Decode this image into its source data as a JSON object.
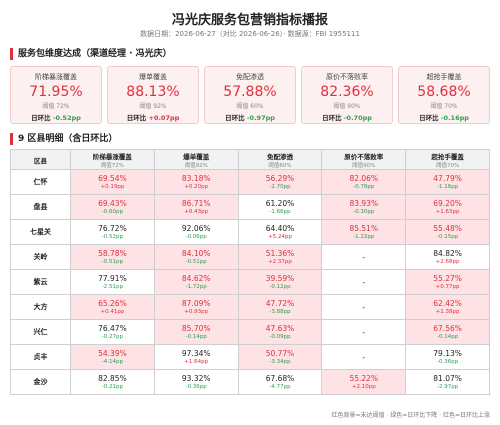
{
  "header": {
    "title": "冯光庆服务包营销指标播报",
    "subtitle": "数据日期：2026-06-27（对比 2026-06-26）· 数据源：FBI 1955111"
  },
  "summary": {
    "title": "服务包维度达成（渠道经理 · 冯光庆）",
    "delta_label": "日环比",
    "cards": [
      {
        "label": "阶梯暴涨覆盖",
        "value": "71.95%",
        "threshold": "阈值 72%",
        "delta": "-0.52pp",
        "alert": true
      },
      {
        "label": "爆单覆盖",
        "value": "88.13%",
        "threshold": "阈值 92%",
        "delta": "+0.07pp",
        "alert": true
      },
      {
        "label": "免配渗透",
        "value": "57.88%",
        "threshold": "阈值 60%",
        "delta": "-0.97pp",
        "alert": true
      },
      {
        "label": "原价不落败率",
        "value": "82.36%",
        "threshold": "阈值 90%",
        "delta": "-0.70pp",
        "alert": true
      },
      {
        "label": "超抢手覆盖",
        "value": "58.68%",
        "threshold": "阈值 70%",
        "delta": "-0.16pp",
        "alert": true
      }
    ]
  },
  "detail": {
    "title": "9 区县明细（含日环比）",
    "first_column": "区县",
    "columns": [
      {
        "label": "阶梯暴涨覆盖",
        "threshold": "阈值72%"
      },
      {
        "label": "爆单覆盖",
        "threshold": "阈值92%"
      },
      {
        "label": "免配渗透",
        "threshold": "阈值60%"
      },
      {
        "label": "原价不落败率",
        "threshold": "阈值90%"
      },
      {
        "label": "超抢手覆盖",
        "threshold": "阈值70%"
      }
    ],
    "rows": [
      {
        "name": "仁怀",
        "cells": [
          {
            "value": "69.54%",
            "delta": "+0.19pp",
            "alert": true
          },
          {
            "value": "83.18%",
            "delta": "+0.20pp",
            "alert": true
          },
          {
            "value": "56.29%",
            "delta": "-2.70pp",
            "alert": true
          },
          {
            "value": "82.06%",
            "delta": "-0.78pp",
            "alert": true
          },
          {
            "value": "47.79%",
            "delta": "-1.16pp",
            "alert": true
          }
        ]
      },
      {
        "name": "盘县",
        "cells": [
          {
            "value": "69.43%",
            "delta": "-0.60pp",
            "alert": true
          },
          {
            "value": "86.71%",
            "delta": "+0.43pp",
            "alert": true
          },
          {
            "value": "61.20%",
            "delta": "-1.66pp",
            "alert": false
          },
          {
            "value": "83.93%",
            "delta": "-0.30pp",
            "alert": true
          },
          {
            "value": "69.20%",
            "delta": "+1.63pp",
            "alert": true
          }
        ]
      },
      {
        "name": "七星关",
        "cells": [
          {
            "value": "76.72%",
            "delta": "-0.52pp",
            "alert": false
          },
          {
            "value": "92.06%",
            "delta": "-0.06pp",
            "alert": false
          },
          {
            "value": "64.40%",
            "delta": "+5.24pp",
            "alert": false
          },
          {
            "value": "85.51%",
            "delta": "-1.22pp",
            "alert": true
          },
          {
            "value": "55.48%",
            "delta": "-0.15pp",
            "alert": true
          }
        ]
      },
      {
        "name": "关岭",
        "cells": [
          {
            "value": "58.78%",
            "delta": "-0.51pp",
            "alert": true
          },
          {
            "value": "84.10%",
            "delta": "-0.51pp",
            "alert": true
          },
          {
            "value": "51.36%",
            "delta": "+2.37pp",
            "alert": true
          },
          {
            "value": "-",
            "alert": false
          },
          {
            "value": "84.82%",
            "delta": "+2.68pp",
            "alert": false
          }
        ]
      },
      {
        "name": "紫云",
        "cells": [
          {
            "value": "77.91%",
            "delta": "-2.51pp",
            "alert": false
          },
          {
            "value": "84.62%",
            "delta": "-1.72pp",
            "alert": true
          },
          {
            "value": "39.59%",
            "delta": "-0.12pp",
            "alert": true
          },
          {
            "value": "-",
            "alert": false
          },
          {
            "value": "55.27%",
            "delta": "+0.77pp",
            "alert": true
          }
        ]
      },
      {
        "name": "大方",
        "cells": [
          {
            "value": "65.26%",
            "delta": "+0.41pp",
            "alert": true
          },
          {
            "value": "87.09%",
            "delta": "+0.93pp",
            "alert": true
          },
          {
            "value": "47.72%",
            "delta": "-3.88pp",
            "alert": true
          },
          {
            "value": "-",
            "alert": false
          },
          {
            "value": "62.42%",
            "delta": "+1.38pp",
            "alert": true
          }
        ]
      },
      {
        "name": "兴仁",
        "cells": [
          {
            "value": "76.47%",
            "delta": "-0.27pp",
            "alert": false
          },
          {
            "value": "85.70%",
            "delta": "-0.14pp",
            "alert": true
          },
          {
            "value": "47.63%",
            "delta": "-0.09pp",
            "alert": true
          },
          {
            "value": "-",
            "alert": false
          },
          {
            "value": "67.56%",
            "delta": "-0.14pp",
            "alert": true
          }
        ]
      },
      {
        "name": "贞丰",
        "cells": [
          {
            "value": "54.39%",
            "delta": "-4.14pp",
            "alert": true
          },
          {
            "value": "97.34%",
            "delta": "+1.64pp",
            "alert": false
          },
          {
            "value": "50.77%",
            "delta": "-3.34pp",
            "alert": true
          },
          {
            "value": "-",
            "alert": false
          },
          {
            "value": "79.13%",
            "delta": "-0.36pp",
            "alert": false
          }
        ]
      },
      {
        "name": "金沙",
        "cells": [
          {
            "value": "82.85%",
            "delta": "-0.21pp",
            "alert": false
          },
          {
            "value": "93.32%",
            "delta": "-0.36pp",
            "alert": false
          },
          {
            "value": "67.68%",
            "delta": "-4.77pp",
            "alert": false
          },
          {
            "value": "55.22%",
            "delta": "+2.10pp",
            "alert": true
          },
          {
            "value": "81.07%",
            "delta": "-2.97pp",
            "alert": false
          }
        ]
      }
    ]
  },
  "footer": "红色背景=未达阈值 · 绿色=日环比下降 · 红色=日环比上涨"
}
